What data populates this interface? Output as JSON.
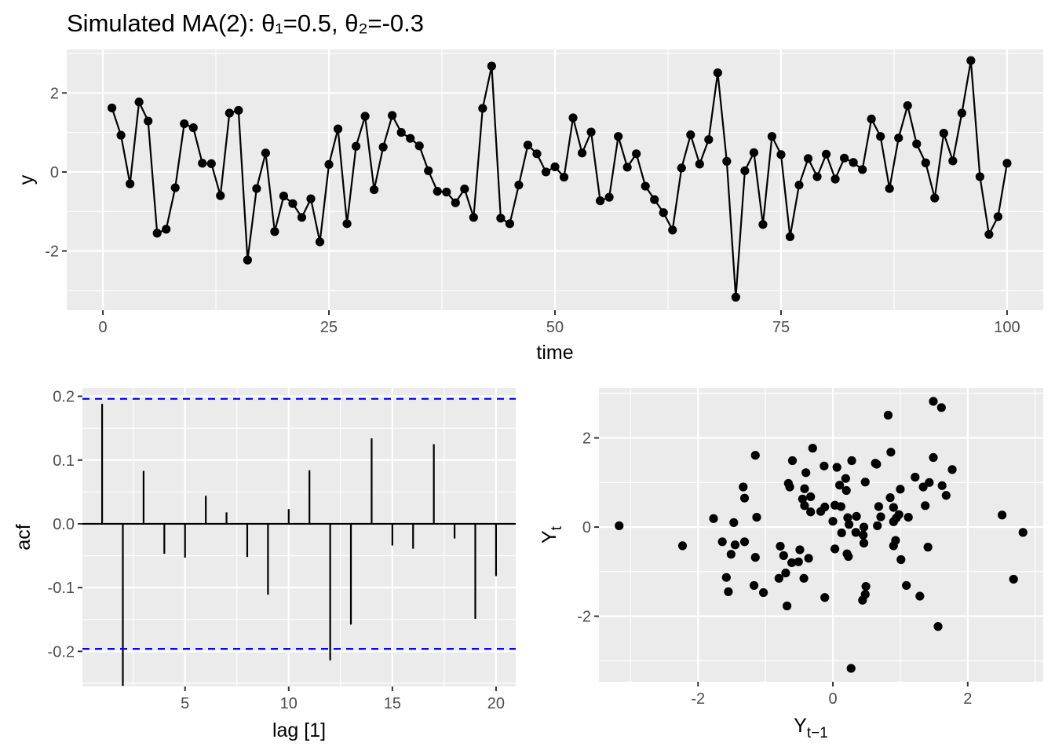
{
  "title": "Simulated MA(2): θ₁=0.5, θ₂=-0.3",
  "chart_data": [
    {
      "type": "line",
      "xlabel": "time",
      "ylabel": "y",
      "xlim": [
        -4,
        104
      ],
      "ylim": [
        -3.5,
        3.1
      ],
      "xticks": [
        0,
        25,
        50,
        75,
        100
      ],
      "xtick_labels": [
        "0",
        "25",
        "50",
        "75",
        "100"
      ],
      "xminor": [
        12.5,
        37.5,
        62.5,
        87.5
      ],
      "yticks": [
        -2,
        0,
        2
      ],
      "ytick_labels": [
        "-2",
        "0",
        "2"
      ],
      "yminor": [
        -3,
        -1,
        1,
        3
      ],
      "grid": true,
      "color": "#000000",
      "x": [
        1,
        2,
        3,
        4,
        5,
        6,
        7,
        8,
        9,
        10,
        11,
        12,
        13,
        14,
        15,
        16,
        17,
        18,
        19,
        20,
        21,
        22,
        23,
        24,
        25,
        26,
        27,
        28,
        29,
        30,
        31,
        32,
        33,
        34,
        35,
        36,
        37,
        38,
        39,
        40,
        41,
        42,
        43,
        44,
        45,
        46,
        47,
        48,
        49,
        50,
        51,
        52,
        53,
        54,
        55,
        56,
        57,
        58,
        59,
        60,
        61,
        62,
        63,
        64,
        65,
        66,
        67,
        68,
        69,
        70,
        71,
        72,
        73,
        74,
        75,
        76,
        77,
        78,
        79,
        80,
        81,
        82,
        83,
        84,
        85,
        86,
        87,
        88,
        89,
        90,
        91,
        92,
        93,
        94,
        95,
        96,
        97,
        98,
        99,
        100
      ],
      "y": [
        1.62,
        0.93,
        -0.3,
        1.77,
        1.29,
        -1.55,
        -1.45,
        -0.4,
        1.22,
        1.12,
        0.22,
        0.21,
        -0.6,
        1.49,
        1.56,
        -2.23,
        -0.42,
        0.48,
        -1.51,
        -0.61,
        -0.8,
        -1.15,
        -0.68,
        -1.77,
        0.19,
        1.09,
        -1.31,
        0.65,
        1.41,
        -0.45,
        0.63,
        1.43,
        1.0,
        0.85,
        0.66,
        0.03,
        -0.49,
        -0.51,
        -0.78,
        -0.43,
        -1.15,
        1.61,
        2.68,
        -1.17,
        -1.31,
        -0.33,
        0.68,
        0.46,
        0.0,
        0.13,
        -0.13,
        1.37,
        0.48,
        1.01,
        -0.73,
        -0.64,
        0.9,
        0.12,
        0.46,
        -0.36,
        -0.7,
        -1.03,
        -1.47,
        0.1,
        0.94,
        0.2,
        0.82,
        2.51,
        0.27,
        -3.17,
        0.03,
        0.49,
        -1.33,
        0.9,
        0.44,
        -1.64,
        -0.33,
        0.34,
        -0.12,
        0.45,
        -0.18,
        0.35,
        0.24,
        0.06,
        1.34,
        0.9,
        -0.42,
        0.86,
        1.68,
        0.71,
        0.23,
        -0.66,
        0.98,
        0.28,
        1.49,
        2.82,
        -0.12,
        -1.58,
        -1.13,
        0.22
      ]
    },
    {
      "type": "bar",
      "xlabel": "lag [1]",
      "ylabel": "acf",
      "xlim": [
        0.05,
        20.95
      ],
      "ylim": [
        -0.255,
        0.213
      ],
      "xticks": [
        5,
        10,
        15,
        20
      ],
      "xtick_labels": [
        "5",
        "10",
        "15",
        "20"
      ],
      "xminor": [
        2.5,
        7.5,
        12.5,
        17.5
      ],
      "yticks": [
        -0.2,
        -0.1,
        0.0,
        0.1,
        0.2
      ],
      "ytick_labels": [
        "-0.2",
        "-0.1",
        "0.0",
        "0.1",
        "0.2"
      ],
      "yminor": [
        -0.25,
        -0.15,
        -0.05,
        0.05,
        0.15
      ],
      "grid": true,
      "confidence_bound": 0.196,
      "bound_color": "#0000ff",
      "color": "#000000",
      "lags": [
        1,
        2,
        3,
        4,
        5,
        6,
        7,
        8,
        9,
        10,
        11,
        12,
        13,
        14,
        15,
        16,
        17,
        18,
        19,
        20
      ],
      "values": [
        0.188,
        -0.254,
        0.083,
        -0.047,
        -0.053,
        0.044,
        0.018,
        -0.052,
        -0.111,
        0.023,
        0.084,
        -0.214,
        -0.158,
        0.134,
        -0.034,
        -0.039,
        0.125,
        -0.023,
        -0.149,
        -0.082
      ]
    },
    {
      "type": "scatter",
      "xlabel": "Y_{t−1}",
      "ylabel": "Y_t",
      "xlabel_main": "Y",
      "xlabel_sub": "t−1",
      "ylabel_main": "Y",
      "ylabel_sub": "t",
      "xlim": [
        -3.47,
        3.12
      ],
      "ylim": [
        -3.47,
        3.12
      ],
      "xticks": [
        -2,
        0,
        2
      ],
      "xtick_labels": [
        "-2",
        "0",
        "2"
      ],
      "xminor": [
        -3,
        -1,
        1,
        3
      ],
      "yticks": [
        -2,
        0,
        2
      ],
      "ytick_labels": [
        "-2",
        "0",
        "2"
      ],
      "yminor": [
        -3,
        -1,
        1,
        3
      ],
      "grid": true,
      "color": "#000000",
      "source": "lag-1 pairs of the simulated series"
    }
  ]
}
